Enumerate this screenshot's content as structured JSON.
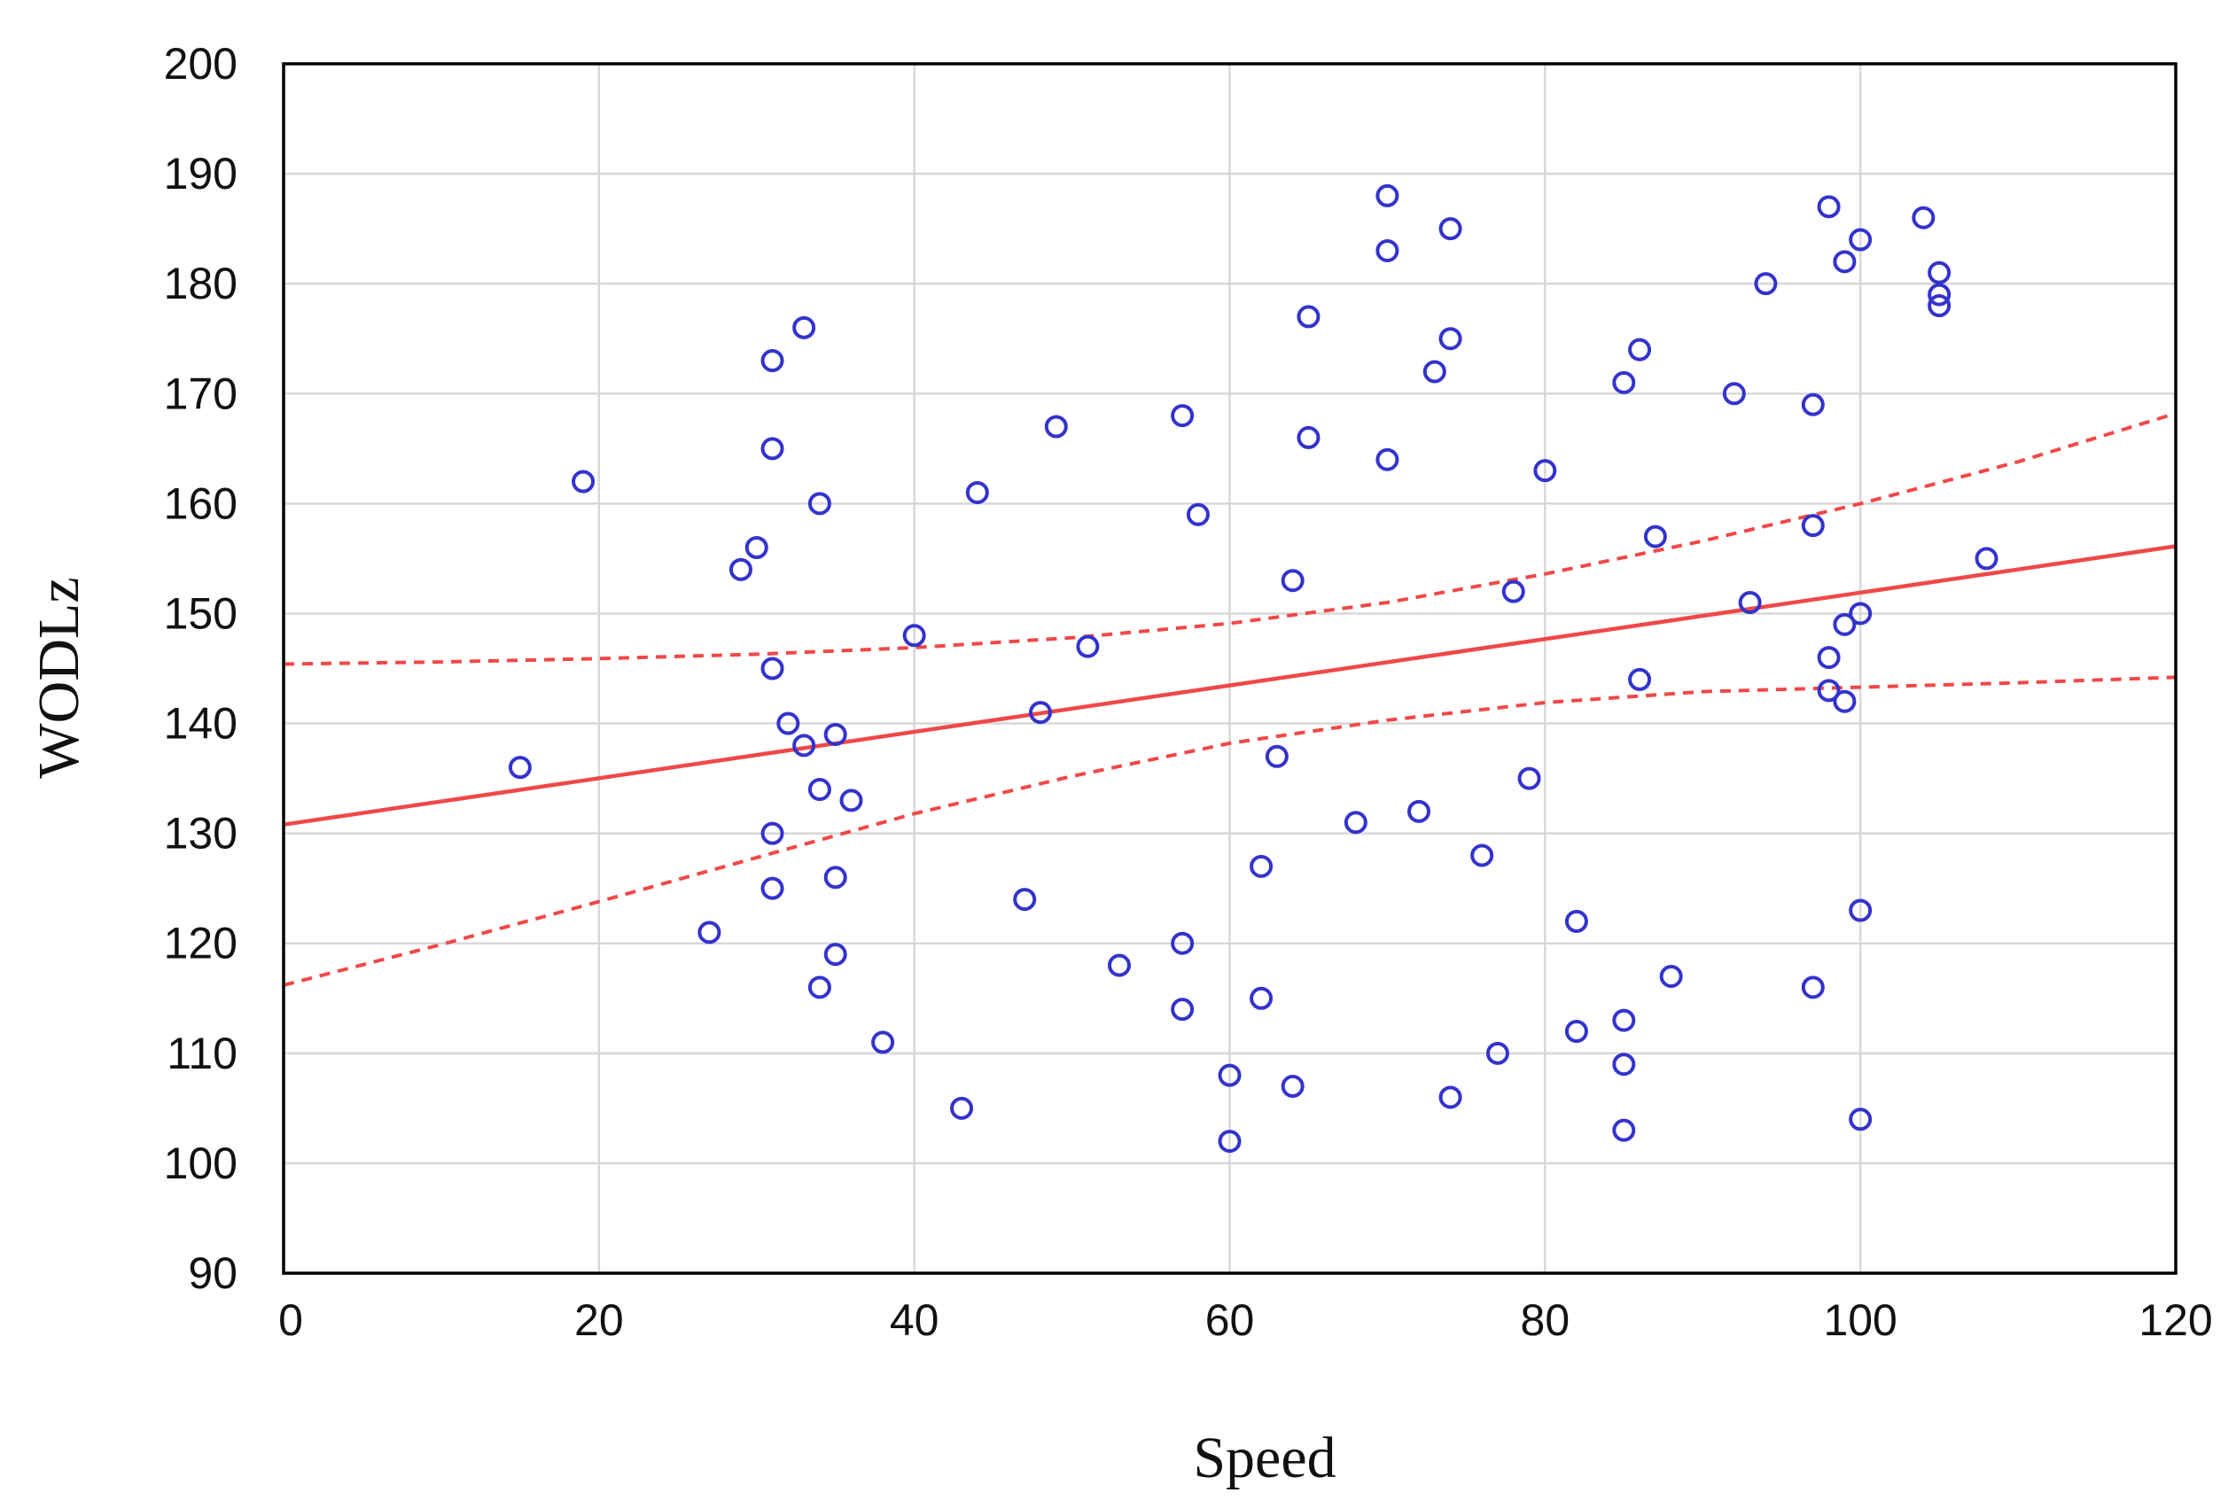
{
  "chart_data": {
    "type": "scatter",
    "title": "",
    "xlabel": "Speed",
    "ylabel": "WODLz",
    "xlim": [
      0,
      120
    ],
    "ylim": [
      90,
      200
    ],
    "grid": true,
    "xticks": [
      0,
      20,
      40,
      60,
      80,
      100,
      120
    ],
    "yticks": [
      90,
      100,
      110,
      120,
      130,
      140,
      150,
      160,
      170,
      180,
      190,
      200
    ],
    "colors": {
      "points": "#3333cc",
      "fit": "#f04848",
      "grid": "#d8d8d8",
      "axis": "#000000"
    },
    "points": [
      [
        15,
        136
      ],
      [
        19,
        162
      ],
      [
        27,
        121
      ],
      [
        29,
        154
      ],
      [
        30,
        156
      ],
      [
        31,
        173
      ],
      [
        31,
        165
      ],
      [
        31,
        145
      ],
      [
        31,
        130
      ],
      [
        31,
        125
      ],
      [
        32,
        140
      ],
      [
        33,
        176
      ],
      [
        33,
        138
      ],
      [
        34,
        160
      ],
      [
        34,
        134
      ],
      [
        34,
        116
      ],
      [
        35,
        139
      ],
      [
        35,
        126
      ],
      [
        35,
        119
      ],
      [
        36,
        133
      ],
      [
        38,
        111
      ],
      [
        40,
        148
      ],
      [
        43,
        105
      ],
      [
        44,
        161
      ],
      [
        47,
        124
      ],
      [
        48,
        141
      ],
      [
        49,
        167
      ],
      [
        51,
        147
      ],
      [
        53,
        118
      ],
      [
        57,
        168
      ],
      [
        57,
        120
      ],
      [
        57,
        114
      ],
      [
        58,
        159
      ],
      [
        60,
        108
      ],
      [
        60,
        102
      ],
      [
        62,
        127
      ],
      [
        62,
        115
      ],
      [
        63,
        137
      ],
      [
        64,
        153
      ],
      [
        64,
        107
      ],
      [
        65,
        177
      ],
      [
        65,
        166
      ],
      [
        68,
        131
      ],
      [
        70,
        188
      ],
      [
        70,
        183
      ],
      [
        70,
        164
      ],
      [
        72,
        132
      ],
      [
        73,
        172
      ],
      [
        74,
        185
      ],
      [
        74,
        175
      ],
      [
        74,
        106
      ],
      [
        76,
        128
      ],
      [
        77,
        110
      ],
      [
        78,
        152
      ],
      [
        79,
        135
      ],
      [
        80,
        163
      ],
      [
        82,
        122
      ],
      [
        82,
        112
      ],
      [
        85,
        171
      ],
      [
        85,
        113
      ],
      [
        85,
        109
      ],
      [
        85,
        103
      ],
      [
        86,
        174
      ],
      [
        86,
        144
      ],
      [
        87,
        157
      ],
      [
        88,
        117
      ],
      [
        92,
        170
      ],
      [
        93,
        151
      ],
      [
        94,
        180
      ],
      [
        97,
        169
      ],
      [
        97,
        158
      ],
      [
        97,
        116
      ],
      [
        98,
        187
      ],
      [
        98,
        146
      ],
      [
        98,
        143
      ],
      [
        99,
        182
      ],
      [
        99,
        149
      ],
      [
        99,
        142
      ],
      [
        100,
        184
      ],
      [
        100,
        150
      ],
      [
        100,
        123
      ],
      [
        100,
        104
      ],
      [
        104,
        186
      ],
      [
        105,
        181
      ],
      [
        105,
        179
      ],
      [
        105,
        178
      ],
      [
        108,
        155
      ]
    ],
    "fit_line": {
      "intercept": 130.8,
      "slope": 0.211
    },
    "confidence_band": {
      "x": [
        0,
        10,
        20,
        30,
        40,
        50,
        60,
        70,
        80,
        90,
        100,
        110,
        120
      ],
      "upper": [
        145.4,
        145.6,
        145.9,
        146.3,
        146.9,
        147.8,
        149.1,
        151.0,
        153.6,
        156.6,
        160.0,
        163.8,
        168.2
      ],
      "lower": [
        116.2,
        119.9,
        123.8,
        127.8,
        131.8,
        135.2,
        138.2,
        140.3,
        141.9,
        142.9,
        143.3,
        143.7,
        144.2
      ]
    }
  }
}
